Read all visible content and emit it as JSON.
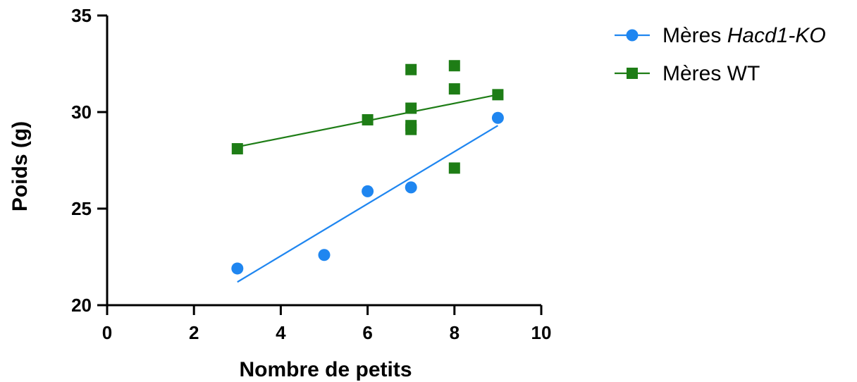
{
  "chart_data": {
    "type": "scatter",
    "xlabel": "Nombre de petits",
    "ylabel": "Poids (g)",
    "xlim": [
      0,
      10
    ],
    "ylim": [
      20,
      35
    ],
    "x_ticks": [
      0,
      2,
      4,
      6,
      8,
      10
    ],
    "y_ticks": [
      20,
      25,
      30,
      35
    ],
    "grid": false,
    "legend_position": "top-right",
    "series": [
      {
        "name_prefix": "Mères ",
        "name_italic": "Hacd1-KO",
        "marker": "circle",
        "color": "#1f86f0",
        "points": [
          {
            "x": 3,
            "y": 21.9
          },
          {
            "x": 5,
            "y": 22.6
          },
          {
            "x": 6,
            "y": 25.9
          },
          {
            "x": 7,
            "y": 26.1
          },
          {
            "x": 9,
            "y": 29.7
          }
        ],
        "fit_line": {
          "x": [
            3,
            9
          ],
          "y": [
            21.2,
            29.3
          ]
        }
      },
      {
        "name_prefix": "Mères WT",
        "name_italic": "",
        "marker": "square",
        "color": "#1e7d16",
        "points": [
          {
            "x": 3,
            "y": 28.1
          },
          {
            "x": 6,
            "y": 29.6
          },
          {
            "x": 7,
            "y": 32.2
          },
          {
            "x": 7,
            "y": 30.2
          },
          {
            "x": 7,
            "y": 29.3
          },
          {
            "x": 7,
            "y": 29.1
          },
          {
            "x": 8,
            "y": 32.4
          },
          {
            "x": 8,
            "y": 31.2
          },
          {
            "x": 8,
            "y": 27.1
          },
          {
            "x": 9,
            "y": 30.9
          }
        ],
        "fit_line": {
          "x": [
            3,
            9
          ],
          "y": [
            28.2,
            30.9
          ]
        }
      }
    ]
  }
}
